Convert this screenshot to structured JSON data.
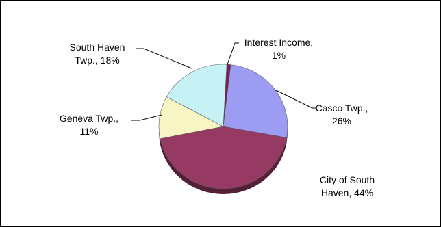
{
  "chart_data": {
    "type": "pie",
    "title": "",
    "labels_position": "outside with leader lines",
    "slices": [
      {
        "name": "Interest Income",
        "percent": 1,
        "label_lines": [
          "Interest Income,",
          "1%"
        ],
        "color": "#7b1f55"
      },
      {
        "name": "Casco Twp.",
        "percent": 26,
        "label_lines": [
          "Casco Twp.,",
          "26%"
        ],
        "color": "#9c9cf3"
      },
      {
        "name": "City of South Haven",
        "percent": 44,
        "label_lines": [
          "City of South",
          "Haven, 44%"
        ],
        "color": "#973a63"
      },
      {
        "name": "Geneva Twp.",
        "percent": 11,
        "label_lines": [
          "Geneva Twp.,",
          "11%"
        ],
        "color": "#f7f5c4"
      },
      {
        "name": "South Haven Twp.",
        "percent": 18,
        "label_lines": [
          "South Haven",
          "Twp., 18%"
        ],
        "color": "#c6f2f6"
      }
    ]
  }
}
